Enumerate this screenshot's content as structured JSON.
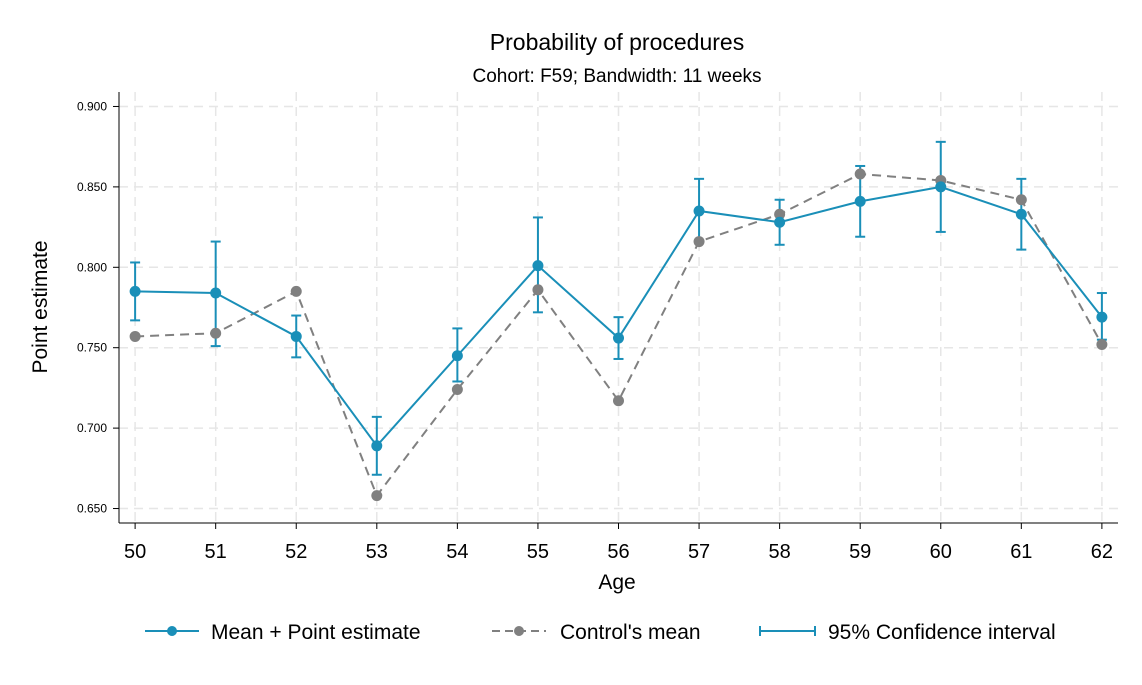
{
  "chart_data": {
    "type": "line",
    "title": "Probability of procedures",
    "subtitle": "Cohort: F59; Bandwidth: 11 weeks",
    "xlabel": "Age",
    "ylabel": "Point estimate",
    "x": [
      50,
      51,
      52,
      53,
      54,
      55,
      56,
      57,
      58,
      59,
      60,
      61,
      62
    ],
    "x_tick_labels": [
      "50",
      "51",
      "52",
      "53",
      "54",
      "55",
      "56",
      "57",
      "58",
      "59",
      "60",
      "61",
      "62"
    ],
    "y_ticks": [
      0.65,
      0.7,
      0.75,
      0.8,
      0.85,
      0.9
    ],
    "y_tick_labels": [
      "0.650",
      "0.700",
      "0.750",
      "0.800",
      "0.850",
      "0.900"
    ],
    "xlim": [
      49.8,
      62.2
    ],
    "ylim": [
      0.641,
      0.909
    ],
    "grid": true,
    "legend_position": "bottom",
    "colors": {
      "estimate": "#1a8fb8",
      "control": "#808080",
      "grid": "#e6e6e6"
    },
    "series": [
      {
        "name": "Mean + Point estimate",
        "style": "solid-line-with-dots",
        "values": [
          0.785,
          0.784,
          0.757,
          0.689,
          0.745,
          0.801,
          0.756,
          0.835,
          0.828,
          0.841,
          0.85,
          0.833,
          0.769
        ]
      },
      {
        "name": "Control's mean",
        "style": "dashed-line-with-dots",
        "values": [
          0.757,
          0.759,
          0.785,
          0.658,
          0.724,
          0.786,
          0.717,
          0.816,
          0.833,
          0.858,
          0.854,
          0.842,
          0.752
        ]
      }
    ],
    "confidence_interval": {
      "name": "95% Confidence interval",
      "lower": [
        0.767,
        0.751,
        0.744,
        0.671,
        0.729,
        0.772,
        0.743,
        0.816,
        0.814,
        0.819,
        0.822,
        0.811,
        0.755
      ],
      "upper": [
        0.803,
        0.816,
        0.77,
        0.707,
        0.762,
        0.831,
        0.769,
        0.855,
        0.842,
        0.863,
        0.878,
        0.855,
        0.784
      ]
    }
  }
}
